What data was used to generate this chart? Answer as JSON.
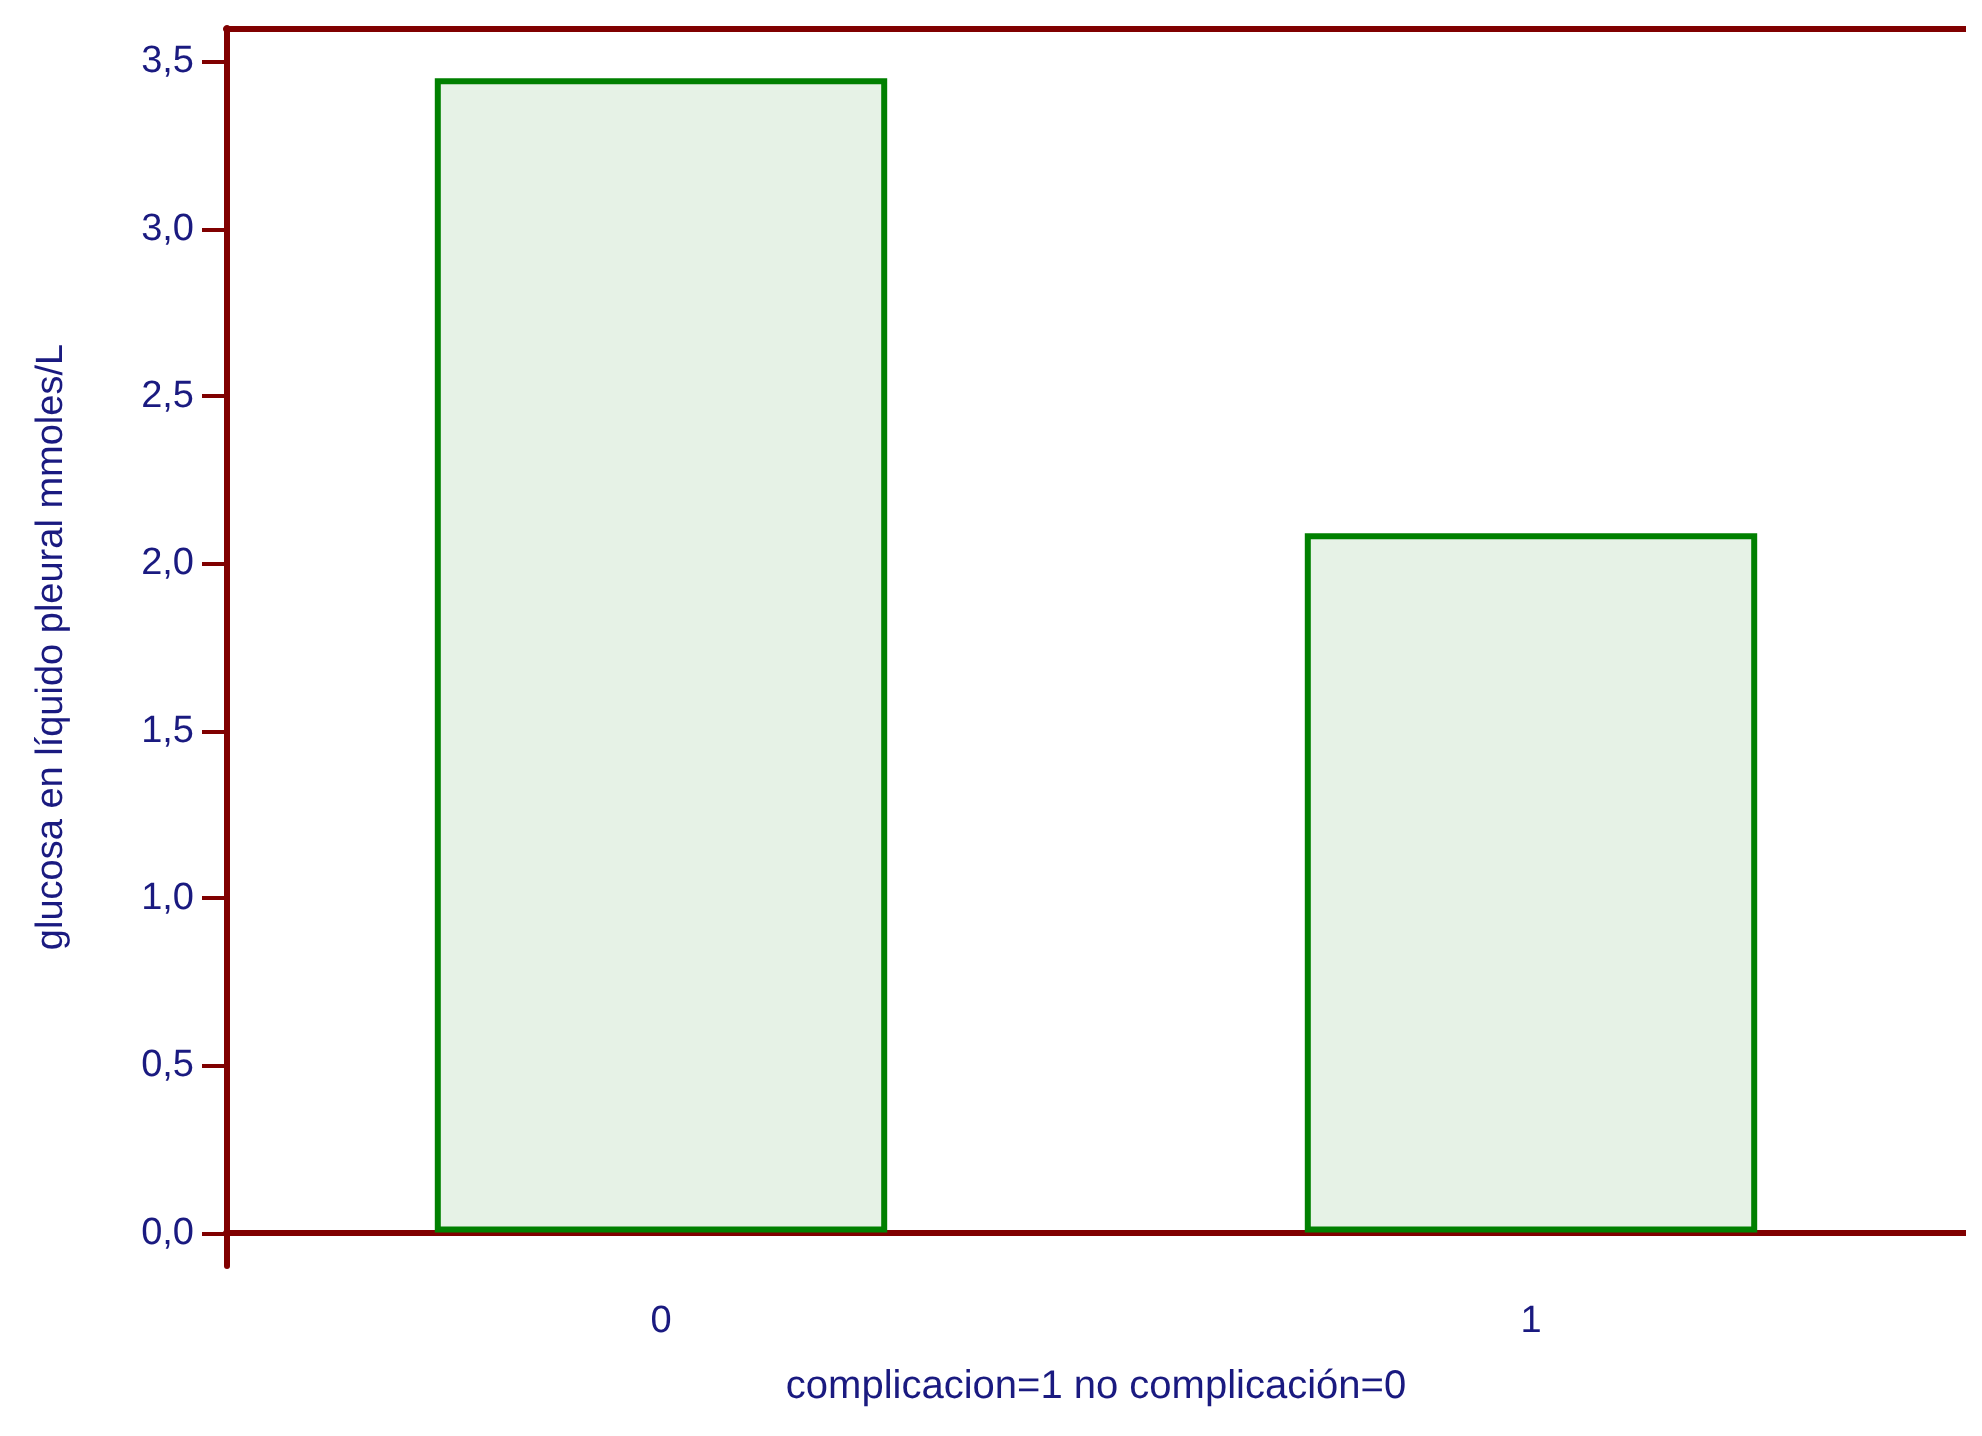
{
  "chart_data": {
    "type": "bar",
    "xlabel": "complicacion=1 no complicación=0",
    "ylabel": "glucosa en líquido pleural mmoles/L",
    "categories": [
      "0",
      "1"
    ],
    "values": [
      3.45,
      2.09
    ],
    "color": "#e6f2e6",
    "ylim": [
      -0.1,
      3.6
    ],
    "yticks": [
      {
        "value": 0,
        "label": "0,0"
      },
      {
        "value": 0.5,
        "label": "0,5"
      },
      {
        "value": 1,
        "label": "1,0"
      },
      {
        "value": 1.5,
        "label": "1,5"
      },
      {
        "value": 2,
        "label": "2,0"
      },
      {
        "value": 2.5,
        "label": "2,5"
      },
      {
        "value": 3,
        "label": "3,0"
      },
      {
        "value": 3.5,
        "label": "3,5"
      }
    ],
    "grid": false
  }
}
